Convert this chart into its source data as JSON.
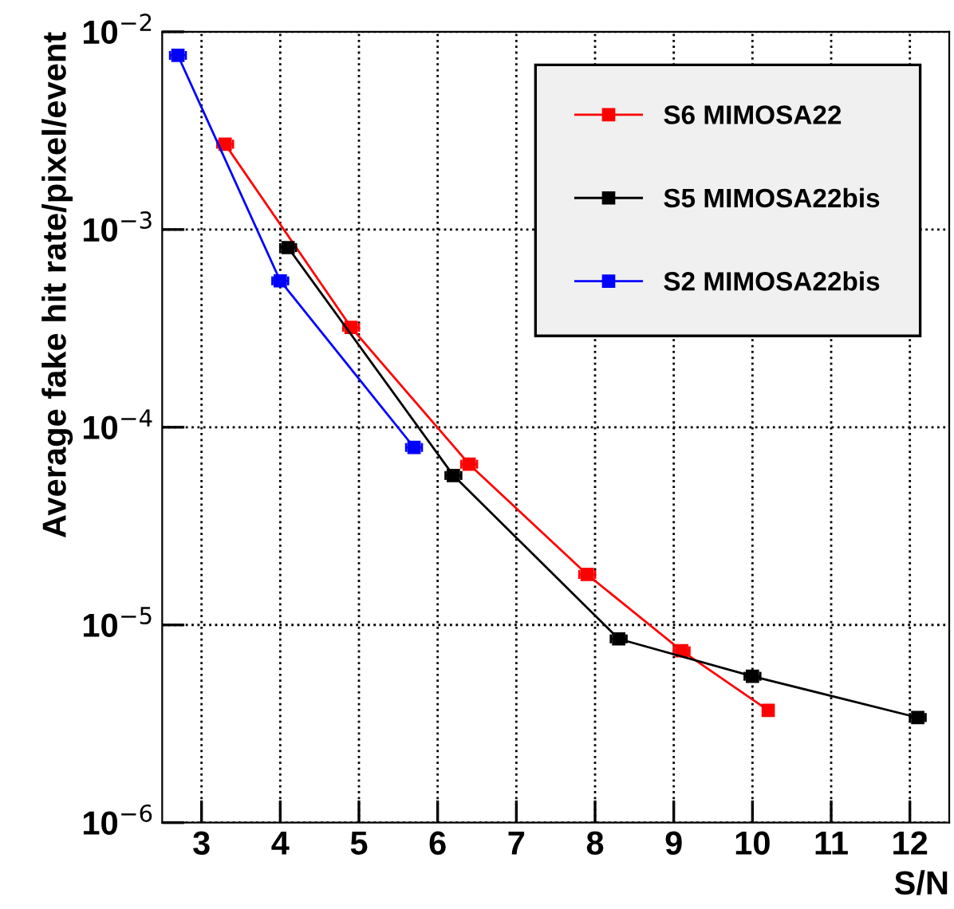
{
  "chart_data": {
    "type": "line",
    "xlabel": "S/N",
    "ylabel": "Average fake hit rate/pixel/event",
    "log": "y",
    "grid": true,
    "legend": "top right",
    "marker": "square",
    "line_style": "solid",
    "xlim": [
      2.5,
      12.5
    ],
    "xticks": [
      3,
      4,
      5,
      6,
      7,
      8,
      9,
      10,
      11,
      12
    ],
    "ylim": [
      1e-06,
      0.01
    ],
    "yticks": [
      {
        "value": 1e-06,
        "label": "10$^{−6}$"
      },
      {
        "value": 1e-05,
        "label": "10$^{−5}$"
      },
      {
        "value": 0.0001,
        "label": "10$^{−4}$"
      },
      {
        "value": 0.001,
        "label": "10$^{−3}$"
      },
      {
        "value": 0.01,
        "label": "10$^{−2}$"
      }
    ],
    "series": [
      {
        "name": "S6 MIMOSA22",
        "color": "#ff0000",
        "x": [
          3.3,
          4.9,
          6.4,
          7.9,
          9.1,
          10.2
        ],
        "values": [
          0.0027,
          0.00032,
          6.5e-05,
          1.8e-05,
          7.4e-06,
          3.7e-06
        ],
        "xerrors": [
          0.1,
          0.1,
          0.1,
          0.1,
          0.1,
          0.05
        ]
      },
      {
        "name": "S5 MIMOSA22bis",
        "color": "#000000",
        "x": [
          4.1,
          6.2,
          8.3,
          10.0,
          12.1
        ],
        "values": [
          0.00081,
          5.7e-05,
          8.5e-06,
          5.5e-06,
          3.4e-06
        ],
        "xerrors": [
          0.1,
          0.1,
          0.1,
          0.1,
          0.1
        ]
      },
      {
        "name": "S2 MIMOSA22bis",
        "color": "#0000ff",
        "x": [
          2.7,
          4.0,
          5.7
        ],
        "values": [
          0.0076,
          0.00055,
          7.9e-05
        ],
        "xerrors": [
          0.1,
          0.1,
          0.1
        ]
      }
    ]
  }
}
